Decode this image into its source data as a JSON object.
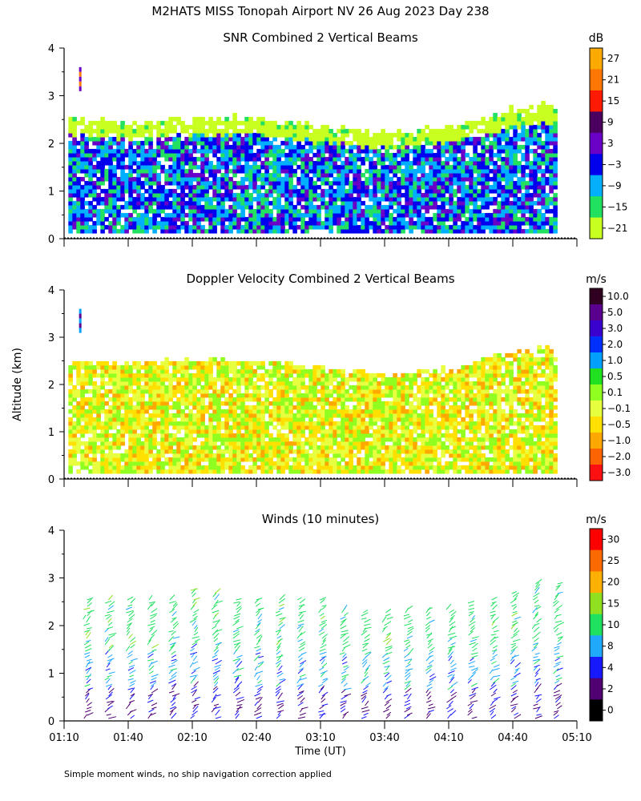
{
  "figure": {
    "title": "M2HATS MISS Tonopah Airport NV  26 Aug 2023 Day 238",
    "ylabel": "Altitude (km)",
    "xlabel": "Time (UT)",
    "footnote": "Simple moment winds, no ship navigation correction applied",
    "x_tick_labels": [
      "01:10",
      "01:40",
      "02:10",
      "02:40",
      "03:10",
      "03:40",
      "04:10",
      "04:40",
      "05:10"
    ]
  },
  "chart_data": [
    {
      "type": "heatmap",
      "title": "SNR Combined 2 Vertical Beams",
      "units": "dB",
      "xlim": [
        "01:10",
        "05:10"
      ],
      "ylim": [
        0,
        4
      ],
      "yticks": [
        0,
        1,
        2,
        3,
        4
      ],
      "colorbar": {
        "labels": [
          "27",
          "21",
          "15",
          "9",
          "3",
          "−3",
          "−9",
          "−15",
          "−21"
        ],
        "colors": [
          "#ffaa00",
          "#ff7700",
          "#ff1a00",
          "#4b0060",
          "#6a00c8",
          "#0000ee",
          "#00b0ff",
          "#22e060",
          "#c8ff20"
        ]
      },
      "data_top_km": [
        {
          "time": "01:10",
          "value": 2.5
        },
        {
          "time": "01:40",
          "value": 2.4
        },
        {
          "time": "02:10",
          "value": 2.5
        },
        {
          "time": "02:40",
          "value": 2.5
        },
        {
          "time": "03:10",
          "value": 2.3
        },
        {
          "time": "03:40",
          "value": 2.2
        },
        {
          "time": "04:10",
          "value": 2.3
        },
        {
          "time": "04:40",
          "value": 2.7
        },
        {
          "time": "05:00",
          "value": 2.8
        }
      ]
    },
    {
      "type": "heatmap",
      "title": "Doppler Velocity Combined 2 Vertical Beams",
      "units": "m/s",
      "xlim": [
        "01:10",
        "05:10"
      ],
      "ylim": [
        0,
        4
      ],
      "yticks": [
        0,
        1,
        2,
        3,
        4
      ],
      "colorbar": {
        "labels": [
          "10.0",
          "5.0",
          "3.0",
          "2.0",
          "1.0",
          "0.5",
          "0.1",
          "−0.1",
          "−0.5",
          "−1.0",
          "−2.0",
          "−3.0"
        ],
        "colors": [
          "#300020",
          "#5a0090",
          "#3a00d0",
          "#0030ff",
          "#00a0ff",
          "#20e020",
          "#90ff20",
          "#e8ff40",
          "#ffe000",
          "#ffa800",
          "#ff6400",
          "#ff1010"
        ]
      },
      "data_top_km": [
        {
          "time": "01:10",
          "value": 2.5
        },
        {
          "time": "01:40",
          "value": 2.4
        },
        {
          "time": "02:10",
          "value": 2.5
        },
        {
          "time": "02:40",
          "value": 2.5
        },
        {
          "time": "03:10",
          "value": 2.3
        },
        {
          "time": "03:40",
          "value": 2.2
        },
        {
          "time": "04:10",
          "value": 2.3
        },
        {
          "time": "04:40",
          "value": 2.7
        },
        {
          "time": "05:00",
          "value": 2.7
        }
      ]
    },
    {
      "type": "scatter",
      "title": "Winds (10 minutes)",
      "units": "m/s",
      "xlim": [
        "01:10",
        "05:10"
      ],
      "ylim": [
        0,
        4
      ],
      "yticks": [
        0,
        1,
        2,
        3,
        4
      ],
      "colorbar": {
        "labels": [
          "30",
          "25",
          "20",
          "15",
          "10",
          "8",
          "4",
          "2",
          "0"
        ],
        "colors": [
          "#ff0000",
          "#ff6a00",
          "#ffb000",
          "#90e020",
          "#20e060",
          "#20a8ff",
          "#1818ff",
          "#500070",
          "#000000"
        ]
      },
      "profiles": [
        {
          "time": "01:20",
          "top_km": 2.6
        },
        {
          "time": "01:30",
          "top_km": 2.6
        },
        {
          "time": "01:40",
          "top_km": 2.6
        },
        {
          "time": "01:50",
          "top_km": 2.6
        },
        {
          "time": "02:00",
          "top_km": 2.6
        },
        {
          "time": "02:10",
          "top_km": 2.8
        },
        {
          "time": "02:20",
          "top_km": 2.7
        },
        {
          "time": "02:30",
          "top_km": 2.6
        },
        {
          "time": "02:40",
          "top_km": 2.6
        },
        {
          "time": "02:50",
          "top_km": 2.6
        },
        {
          "time": "03:00",
          "top_km": 2.6
        },
        {
          "time": "03:10",
          "top_km": 2.6
        },
        {
          "time": "03:20",
          "top_km": 2.4
        },
        {
          "time": "03:30",
          "top_km": 2.3
        },
        {
          "time": "03:40",
          "top_km": 2.3
        },
        {
          "time": "03:50",
          "top_km": 2.4
        },
        {
          "time": "04:00",
          "top_km": 2.4
        },
        {
          "time": "04:10",
          "top_km": 2.4
        },
        {
          "time": "04:20",
          "top_km": 2.5
        },
        {
          "time": "04:30",
          "top_km": 2.6
        },
        {
          "time": "04:40",
          "top_km": 2.7
        },
        {
          "time": "04:50",
          "top_km": 2.9
        },
        {
          "time": "05:00",
          "top_km": 2.9
        }
      ]
    }
  ]
}
